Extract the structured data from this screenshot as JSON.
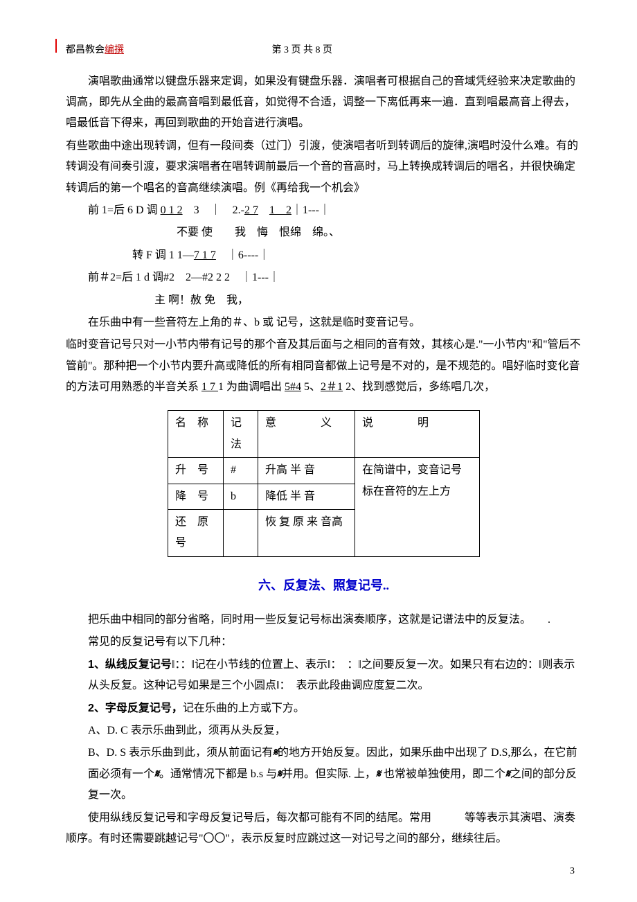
{
  "header": {
    "left_prefix": "都昌教会",
    "left_red": "编撰",
    "center": "第 3 页 共 8 页"
  },
  "body": {
    "p1": "演唱歌曲通常以键盘乐器来定调，如果没有键盘乐器．演唱者可根据自己的音域凭经验来决定歌曲的调高，即先从全曲的最高音唱到最低音，如觉得不合适，调整一下离低再来一遍．直到唱最高音上得去，唱最低音下得来，再回到歌曲的开始音进行演唱。",
    "p2": "有些歌曲中途出现转调，但有一段间奏（过门）引渡，使演唱者听到转调后的旋律,演唱时没什么难。有的转调没有间奏引渡，要求演唱者在唱转调前最后一个音的音高时，马上转换成转调后的唱名，并很快确定转调后的第一个唱名的音高继续演唱。例《再给我一个机会》",
    "line1_a": "前 1=后 6 D 调 ",
    "line1_u1": "0 1 2",
    "line1_b": "　3　｜　2.-",
    "line1_u2": "2 7",
    "line1_c": "　",
    "line1_u3": "1　2",
    "line1_d": "｜1---｜",
    "line2": "不要 使　　我　悔　恨绵　绵。、",
    "line3_a": "转 F 调 1 1—",
    "line3_u": "7 1 7",
    "line3_b": "　｜6----｜",
    "line4": "前＃2=后 1 d 调#2　2—#2 2 2　｜1---｜",
    "line5": "主 啊！赦 免　我，",
    "p3": "在乐曲中有一些音符左上角的＃、b 或 记号，这就是临时变音记号。",
    "p4_a": "临时变音记号只对一小节内带有记号的那个音及其后面与之相同的音有效，其核心是.\"一小节内\"和\"管后不管前\"。那种把一个小节内要升高或降低的所有相同音都做上记号是不对的，是不规范的。唱好临时变化音的方法可用熟悉的半音关系 ",
    "p4_u1": "1 7 ",
    "p4_b": "1 为曲调唱出 ",
    "p4_u2": "5#4",
    "p4_c": " 5、",
    "p4_u3": "2＃1",
    "p4_d": " 2、找到感觉后，多练唱几次，"
  },
  "table": {
    "h1": "名　称",
    "h2": "记法",
    "h3": "意　　　　义",
    "h4": "说　　　　明",
    "r1c1": "升　号",
    "r1c2": "#",
    "r1c3": "升高 半 音",
    "note": "在简谱中，变音记号标在音符的左上方",
    "r2c1": "降　号",
    "r2c2": "b",
    "r2c3": "降低 半 音",
    "r3c1": "还　原号",
    "r3c2": "",
    "r3c3": "恢 复 原 来 音高"
  },
  "section6": {
    "title": "六、反复法、照复记号..",
    "p1": "把乐曲中相同的部分省略，同时用一些反复记号标出演奏顺序，这就是记谱法中的反复法。　　.",
    "p2": "常见的反复记号有以下几种：",
    "p3_bold": "1、纵线反复记号",
    "p3": "‖：：‖记在小节线的位置上、表示‖：　：‖之间要反复一次。如果只有右边的：‖则表示从头反复。这种记号如果是三个小圆点‖：　表示此段曲调应度复二次。",
    "p4_bold": "2、字母反复记号，",
    "p4": "记在乐曲的上方或下方。",
    "p5": "A、D. C 表示乐曲到此，须再从头反复，",
    "p6_a": "B、D. S 表示乐曲到此，须从前面记有",
    "p6_b": "的地方开始反复。因此，如果乐曲中出现了 D.S,那么，在它前面必须有一个",
    "p6_c": "。通常情况下都是 b.s 与",
    "p6_d": "并用。但实际. 上，",
    "p6_e": " 也常被单独使用，即二个",
    "p6_f": "之间的部分反复一次。",
    "p7": "使用纵线反复记号和字母反复记号后，每次都可能有不同的结尾。常用　　　等等表示其演唱、演奏顺序。有时还需要跳越记号\"〇〇\"，表示反复时应跳过这一对记号之间的部分，继续往后。",
    "segno": "𝄋"
  },
  "footer": {
    "page": "3"
  }
}
